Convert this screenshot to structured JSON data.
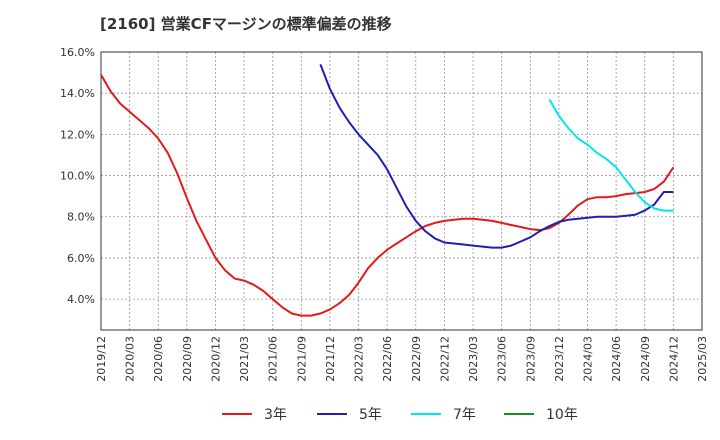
{
  "chart_data": {
    "type": "line",
    "title": "[2160]  営業CFマージンの標準偏差の推移",
    "xlabel": "",
    "ylabel": "",
    "ylim": [
      2.5,
      16.0
    ],
    "y_ticks": [
      4.0,
      6.0,
      8.0,
      10.0,
      12.0,
      14.0,
      16.0
    ],
    "y_tick_labels": [
      "4.0%",
      "6.0%",
      "8.0%",
      "10.0%",
      "12.0%",
      "14.0%",
      "16.0%"
    ],
    "x_ticks": [
      "2019/12",
      "2020/03",
      "2020/06",
      "2020/09",
      "2020/12",
      "2021/03",
      "2021/06",
      "2021/09",
      "2021/12",
      "2022/03",
      "2022/06",
      "2022/09",
      "2022/12",
      "2023/03",
      "2023/06",
      "2023/09",
      "2023/12",
      "2024/03",
      "2024/06",
      "2024/09",
      "2024/12",
      "2025/03"
    ],
    "grid": true,
    "legend_position": "bottom",
    "series": [
      {
        "name": "3年",
        "color": "#e31a1c",
        "x": [
          "2019/12",
          "2020/01",
          "2020/02",
          "2020/03",
          "2020/04",
          "2020/05",
          "2020/06",
          "2020/07",
          "2020/08",
          "2020/09",
          "2020/10",
          "2020/11",
          "2020/12",
          "2021/01",
          "2021/02",
          "2021/03",
          "2021/04",
          "2021/05",
          "2021/06",
          "2021/07",
          "2021/08",
          "2021/09",
          "2021/10",
          "2021/11",
          "2021/12",
          "2022/01",
          "2022/02",
          "2022/03",
          "2022/04",
          "2022/05",
          "2022/06",
          "2022/07",
          "2022/08",
          "2022/09",
          "2022/10",
          "2022/11",
          "2022/12",
          "2023/01",
          "2023/02",
          "2023/03",
          "2023/04",
          "2023/05",
          "2023/06",
          "2023/07",
          "2023/08",
          "2023/09",
          "2023/10",
          "2023/11",
          "2023/12",
          "2024/01",
          "2024/02",
          "2024/03",
          "2024/04",
          "2024/05",
          "2024/06",
          "2024/07",
          "2024/08",
          "2024/09",
          "2024/10",
          "2024/11",
          "2024/12"
        ],
        "values": [
          14.9,
          14.1,
          13.5,
          13.1,
          12.7,
          12.3,
          11.8,
          11.1,
          10.1,
          8.9,
          7.8,
          6.9,
          6.0,
          5.4,
          5.0,
          4.9,
          4.7,
          4.4,
          4.0,
          3.6,
          3.3,
          3.2,
          3.2,
          3.3,
          3.5,
          3.8,
          4.2,
          4.8,
          5.5,
          6.0,
          6.4,
          6.7,
          7.0,
          7.3,
          7.55,
          7.7,
          7.8,
          7.85,
          7.9,
          7.9,
          7.85,
          7.8,
          7.7,
          7.6,
          7.5,
          7.4,
          7.35,
          7.45,
          7.7,
          8.1,
          8.55,
          8.85,
          8.95,
          8.95,
          9.0,
          9.1,
          9.15,
          9.2,
          9.35,
          9.7,
          10.4
        ]
      },
      {
        "name": "5年",
        "color": "#1f1fb4",
        "x": [
          "2021/11",
          "2021/12",
          "2022/01",
          "2022/02",
          "2022/03",
          "2022/04",
          "2022/05",
          "2022/06",
          "2022/07",
          "2022/08",
          "2022/09",
          "2022/10",
          "2022/11",
          "2022/12",
          "2023/01",
          "2023/02",
          "2023/03",
          "2023/04",
          "2023/05",
          "2023/06",
          "2023/07",
          "2023/08",
          "2023/09",
          "2023/10",
          "2023/11",
          "2023/12",
          "2024/01",
          "2024/02",
          "2024/03",
          "2024/04",
          "2024/05",
          "2024/06",
          "2024/07",
          "2024/08",
          "2024/09",
          "2024/10",
          "2024/11",
          "2024/12"
        ],
        "values": [
          15.4,
          14.2,
          13.3,
          12.6,
          12.0,
          11.5,
          11.0,
          10.3,
          9.4,
          8.5,
          7.8,
          7.3,
          6.95,
          6.75,
          6.7,
          6.65,
          6.6,
          6.55,
          6.5,
          6.5,
          6.6,
          6.8,
          7.0,
          7.3,
          7.55,
          7.75,
          7.85,
          7.9,
          7.95,
          8.0,
          8.0,
          8.0,
          8.05,
          8.1,
          8.3,
          8.6,
          9.2,
          9.2
        ]
      },
      {
        "name": "7年",
        "color": "#00e5ee",
        "x": [
          "2023/11",
          "2023/12",
          "2024/01",
          "2024/02",
          "2024/03",
          "2024/04",
          "2024/05",
          "2024/06",
          "2024/07",
          "2024/08",
          "2024/09",
          "2024/10",
          "2024/11",
          "2024/12"
        ],
        "values": [
          13.7,
          12.9,
          12.3,
          11.8,
          11.5,
          11.1,
          10.8,
          10.4,
          9.8,
          9.2,
          8.7,
          8.4,
          8.3,
          8.3
        ]
      },
      {
        "name": "10年",
        "color": "#228b22",
        "x": [],
        "values": []
      }
    ]
  }
}
